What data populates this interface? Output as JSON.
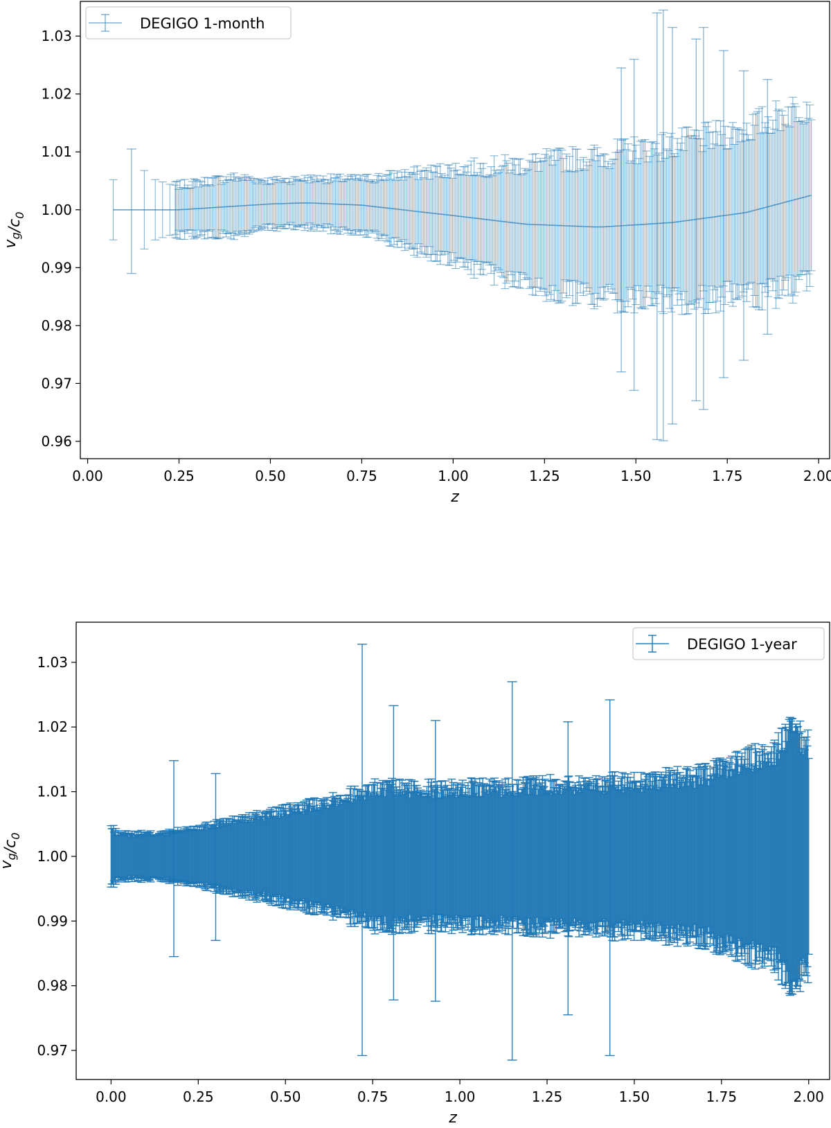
{
  "chart_data": [
    {
      "type": "scatter",
      "subtype": "errorbar",
      "series_name": "DEGIGO 1-month",
      "color": "#1f77b4",
      "alpha": 0.55,
      "xlabel": "z",
      "ylabel": "v_g/c_0",
      "xlim": [
        -0.02,
        2.03
      ],
      "ylim": [
        0.957,
        1.036
      ],
      "xticks": [
        "0.00",
        "0.25",
        "0.50",
        "0.75",
        "1.00",
        "1.25",
        "1.50",
        "1.75",
        "2.00"
      ],
      "yticks": [
        "0.96",
        "0.97",
        "0.98",
        "0.99",
        "1.00",
        "1.01",
        "1.02",
        "1.03"
      ],
      "legend_position": "top-left",
      "central_curve": {
        "z": [
          0.07,
          0.25,
          0.5,
          0.6,
          0.75,
          1.0,
          1.2,
          1.4,
          1.6,
          1.8,
          1.98
        ],
        "v": [
          1.0,
          1.0,
          1.001,
          1.0012,
          1.0008,
          0.999,
          0.9975,
          0.997,
          0.9978,
          0.9995,
          1.0025
        ]
      },
      "error_envelope": {
        "z": [
          0.07,
          0.12,
          0.2,
          0.3,
          0.4,
          0.5,
          0.75,
          1.0,
          1.25,
          1.5,
          1.75,
          1.98
        ],
        "sigma": [
          0.005,
          0.01,
          0.004,
          0.0045,
          0.005,
          0.004,
          0.0045,
          0.008,
          0.011,
          0.013,
          0.014,
          0.016
        ]
      },
      "outliers": [
        {
          "z": 0.12,
          "lo": 0.989,
          "hi": 1.0105
        },
        {
          "z": 1.46,
          "lo": 0.972,
          "hi": 1.0245
        },
        {
          "z": 1.495,
          "lo": 0.9688,
          "hi": 1.026
        },
        {
          "z": 1.558,
          "lo": 0.9603,
          "hi": 1.034
        },
        {
          "z": 1.575,
          "lo": 0.9601,
          "hi": 1.0345
        },
        {
          "z": 1.6,
          "lo": 0.963,
          "hi": 1.0315
        },
        {
          "z": 1.665,
          "lo": 0.967,
          "hi": 1.0295
        },
        {
          "z": 1.685,
          "lo": 0.9655,
          "hi": 1.0315
        },
        {
          "z": 1.74,
          "lo": 0.971,
          "hi": 1.0275
        },
        {
          "z": 1.795,
          "lo": 0.974,
          "hi": 1.024
        },
        {
          "z": 1.86,
          "lo": 0.9785,
          "hi": 1.0225
        }
      ]
    },
    {
      "type": "scatter",
      "subtype": "errorbar",
      "series_name": "DEGIGO 1-year",
      "color": "#1f77b4",
      "alpha": 0.95,
      "xlabel": "z",
      "ylabel": "v_g/c_0",
      "xlim": [
        -0.1,
        2.06
      ],
      "ylim": [
        0.9655,
        1.0362
      ],
      "xticks": [
        "0.00",
        "0.25",
        "0.50",
        "0.75",
        "1.00",
        "1.25",
        "1.50",
        "1.75",
        "2.00"
      ],
      "yticks": [
        "0.97",
        "0.98",
        "0.99",
        "1.00",
        "1.01",
        "1.02",
        "1.03"
      ],
      "legend_position": "top-right",
      "error_envelope": {
        "z": [
          0.0,
          0.02,
          0.05,
          0.15,
          0.25,
          0.35,
          0.5,
          0.65,
          0.75,
          1.0,
          1.25,
          1.5,
          1.6,
          1.7,
          1.8,
          1.9,
          1.95,
          2.0
        ],
        "sigma": [
          0.0045,
          0.0035,
          0.0035,
          0.0035,
          0.0045,
          0.0055,
          0.007,
          0.009,
          0.0105,
          0.0105,
          0.011,
          0.0115,
          0.012,
          0.0125,
          0.0145,
          0.016,
          0.0195,
          0.017
        ]
      },
      "outliers": [
        {
          "z": 0.18,
          "lo": 0.9845,
          "hi": 1.0148
        },
        {
          "z": 0.3,
          "lo": 0.987,
          "hi": 1.0128
        },
        {
          "z": 0.72,
          "lo": 0.9692,
          "hi": 1.0328
        },
        {
          "z": 0.81,
          "lo": 0.9778,
          "hi": 1.0233
        },
        {
          "z": 0.93,
          "lo": 0.9776,
          "hi": 1.021
        },
        {
          "z": 1.15,
          "lo": 0.9685,
          "hi": 1.027
        },
        {
          "z": 1.31,
          "lo": 0.9755,
          "hi": 1.0208
        },
        {
          "z": 1.43,
          "lo": 0.9692,
          "hi": 1.0242
        }
      ]
    }
  ],
  "legend": {
    "top": "DEGIGO 1-month",
    "bottom": "DEGIGO 1-year"
  }
}
